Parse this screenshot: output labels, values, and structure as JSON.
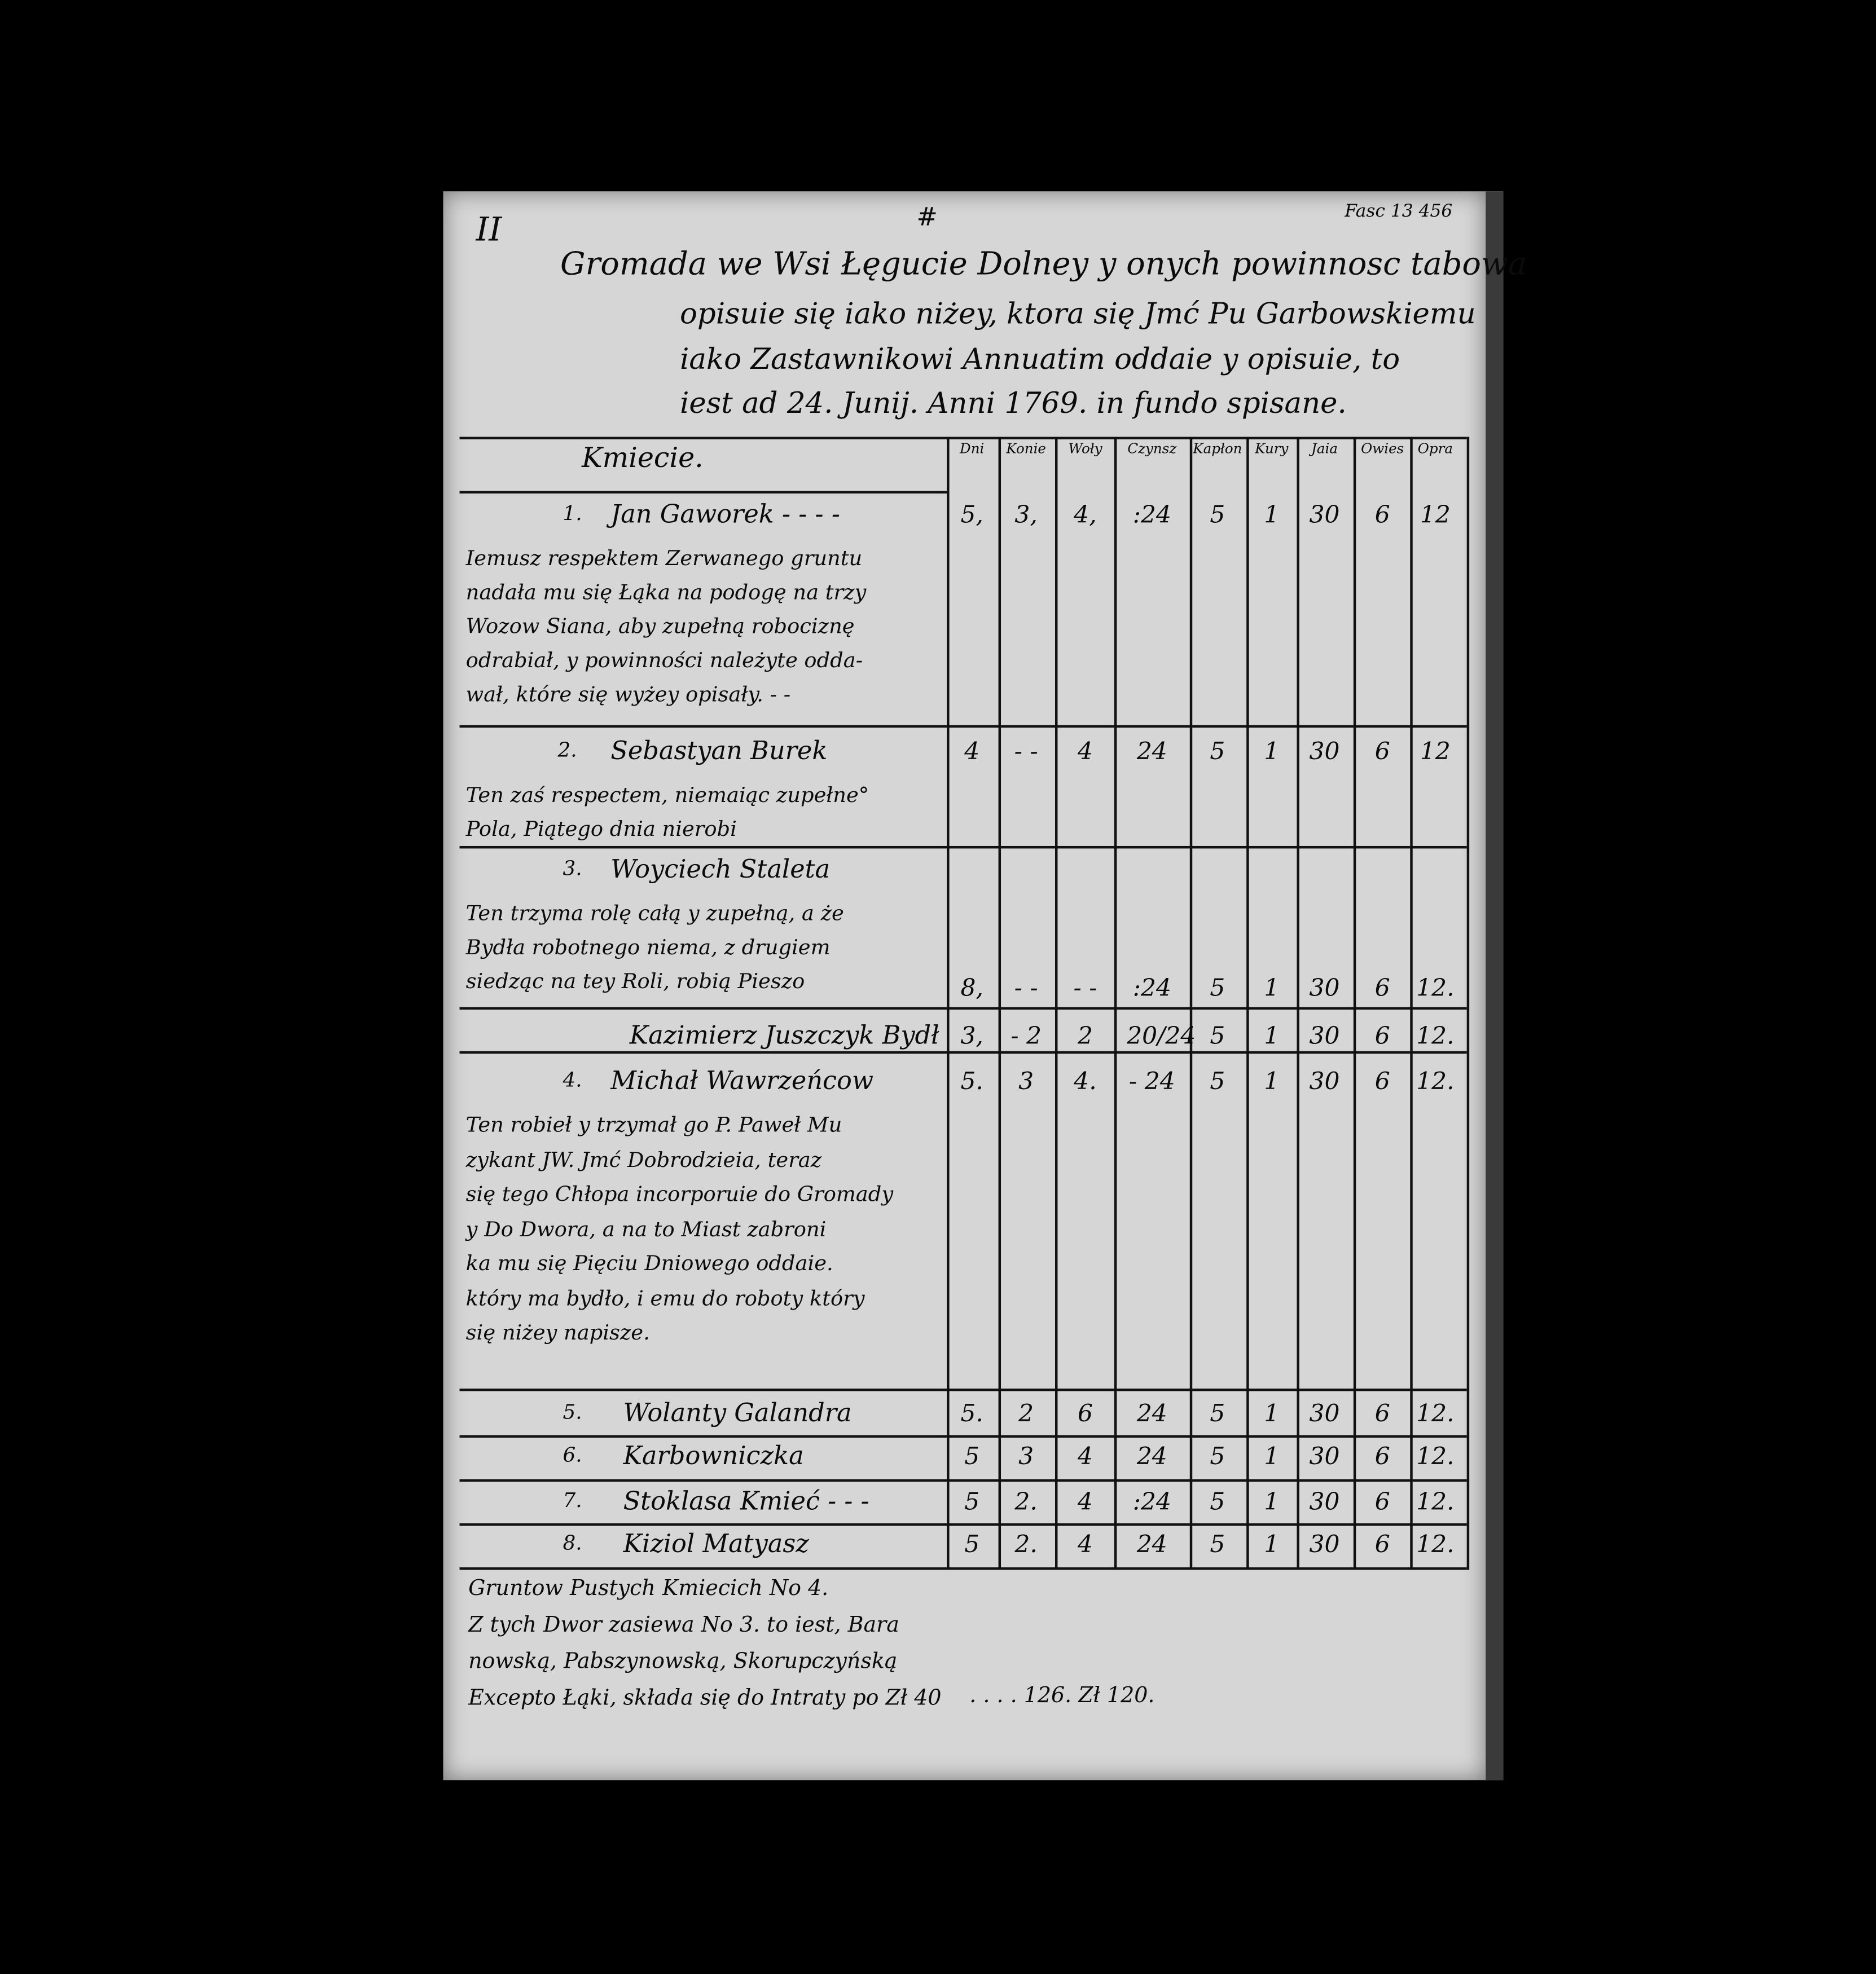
{
  "document": {
    "margin_mark": "II",
    "hash_mark": "#",
    "archive_ref": "Fasc 13 456",
    "title_lines": [
      "Gromada we Wsi Łęgucie Dolney y onych powinnosc tabowa",
      "opisuie się iako niżey, ktora się Jmć Pu Garbowskiemu",
      "iako Zastawnikowi Annuatim oddaie y opisuie, to",
      "iest ad 24. Junij. Anni 1769. in fundo spisane."
    ],
    "section_header": "Kmiecie.",
    "columns": [
      "Dni",
      "Konie",
      "Woły",
      "Czynsz",
      "Kapłon",
      "Kury",
      "Jaia",
      "Owies",
      "Opra"
    ],
    "rows": [
      {
        "num": "1.",
        "name": "Jan Gaworek - - - -",
        "values": [
          "5,",
          "3,",
          "4,",
          ":24",
          "5",
          "1",
          "30",
          "6",
          "12"
        ],
        "note": [
          "Iemusz respektem Zerwanego gruntu",
          "nadała mu się Łąka na podogę na trzy",
          "Wozow Siana, aby zupełną robociznę",
          "odrabiał, y powinności należyte odda-",
          "wał, które się wyżey opisały. - -"
        ]
      },
      {
        "num": "2.",
        "name": "Sebastyan Burek",
        "values": [
          "4",
          "- -",
          "4",
          "24",
          "5",
          "1",
          "30",
          "6",
          "12"
        ],
        "note": [
          "Ten zaś respectem, niemaiąc zupełne°",
          "Pola, Piątego dnia nierobi"
        ]
      },
      {
        "num": "3.",
        "name": "Woyciech Staleta",
        "values": [
          "8,",
          "- -",
          "- -",
          ":24",
          "5",
          "1",
          "30",
          "6",
          "12."
        ],
        "note": [
          "Ten trzyma rolę całą y zupełną, a że",
          "Bydła robotnego niema, z drugiem",
          "siedząc na tey Roli, robią Pieszo"
        ]
      },
      {
        "num": "",
        "name": "Kazimierz Juszczyk Bydł",
        "values": [
          "3,",
          "- 2",
          "2",
          "20/24",
          "5",
          "1",
          "30",
          "6",
          "12."
        ],
        "note": []
      },
      {
        "num": "4.",
        "name": "Michał Wawrzeńcow",
        "values": [
          "5.",
          "3",
          "4.",
          "- 24",
          "5",
          "1",
          "30",
          "6",
          "12."
        ],
        "note": [
          "Ten robieł y trzymał go P. Paweł Mu",
          "zykant JW. Jmć Dobrodzieia, teraz",
          "się tego Chłopa incorporuie do Gromady",
          "y Do Dwora, a na to Miast zabroni",
          "ka mu się Pięciu Dniowego oddaie.",
          "który ma bydło, i emu do roboty który",
          "się niżey napisze."
        ]
      },
      {
        "num": "5.",
        "name": "Wolanty Galandra",
        "values": [
          "5.",
          "2",
          "6",
          "24",
          "5",
          "1",
          "30",
          "6",
          "12."
        ],
        "note": []
      },
      {
        "num": "6.",
        "name": "Karbowniczka",
        "values": [
          "5",
          "3",
          "4",
          "24",
          "5",
          "1",
          "30",
          "6",
          "12."
        ],
        "note": []
      },
      {
        "num": "7.",
        "name": "Stoklasa Kmieć - - -",
        "values": [
          "5",
          "2.",
          "4",
          ":24",
          "5",
          "1",
          "30",
          "6",
          "12."
        ],
        "note": []
      },
      {
        "num": "8.",
        "name": "Kiziol Matyasz",
        "values": [
          "5",
          "2.",
          "4",
          "24",
          "5",
          "1",
          "30",
          "6",
          "12."
        ],
        "note": []
      }
    ],
    "footer_lines": [
      "Gruntow Pustych Kmiecich No 4.",
      "Z tych Dwor zasiewa No 3. to iest, Bara",
      "nowską, Pabszynowską, Skorupczyńską",
      "Excepto Łąki, składa się do Intraty po Zł 40"
    ],
    "footer_values": ". . . . 126. Zł 120."
  },
  "colors": {
    "paper": "#d6d6d6",
    "ink": "#0b0b0b",
    "background": "#000000"
  }
}
